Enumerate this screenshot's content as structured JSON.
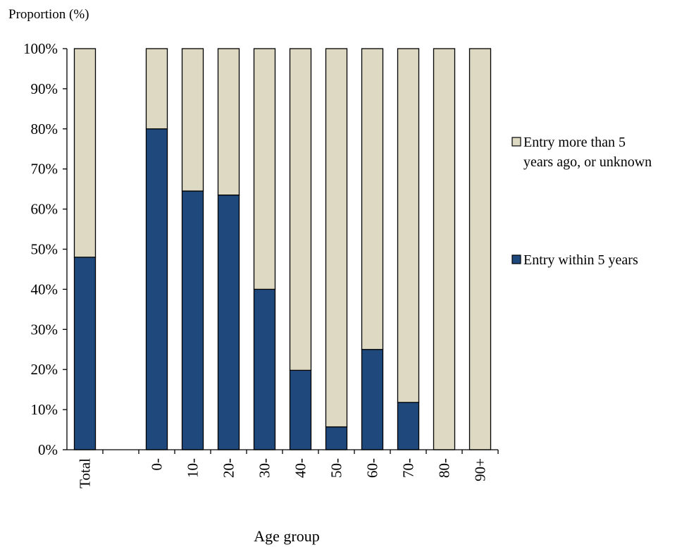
{
  "chart_data": {
    "type": "bar",
    "stacked": true,
    "ylabel": "Proportion (%)",
    "xlabel": "Age group",
    "ylim": [
      0,
      100
    ],
    "yticks": [
      "0%",
      "10%",
      "20%",
      "30%",
      "40%",
      "50%",
      "60%",
      "70%",
      "80%",
      "90%",
      "100%"
    ],
    "categories": [
      "Total",
      "",
      "0-",
      "10-",
      "20-",
      "30-",
      "40-",
      "50-",
      "60-",
      "70-",
      "80-",
      "90+"
    ],
    "series": [
      {
        "name": "Entry within 5 years",
        "color": "#1f497d",
        "values": [
          48,
          null,
          80,
          64.5,
          63.5,
          40,
          19.8,
          5.7,
          25,
          11.8,
          0,
          0
        ]
      },
      {
        "name": "Entry more than 5 years ago, or unknown",
        "color": "#ddd9c3",
        "values": [
          52,
          null,
          20,
          35.5,
          36.5,
          60,
          80.2,
          94.3,
          75,
          88.2,
          100,
          100
        ]
      }
    ],
    "legend": {
      "position": "right",
      "items": [
        {
          "lines": [
            "Entry more than 5",
            "years ago, or unknown"
          ],
          "color": "#ddd9c3"
        },
        {
          "lines": [
            "Entry within 5 years"
          ],
          "color": "#1f497d"
        }
      ]
    },
    "grid": false
  }
}
